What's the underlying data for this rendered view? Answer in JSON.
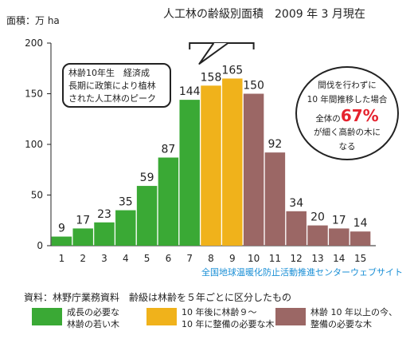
{
  "chart_data": {
    "type": "bar",
    "title": "人工林の齢級別面積　2009 年 3 月現在",
    "ylabel": "面積：万 ha",
    "xlabel": "",
    "ylim": [
      0,
      200
    ],
    "yticks": [
      0,
      50,
      100,
      150,
      200
    ],
    "grid": false,
    "categories": [
      "1",
      "2",
      "3",
      "4",
      "5",
      "6",
      "7",
      "8",
      "9",
      "10",
      "11",
      "12",
      "13",
      "14",
      "15"
    ],
    "values": [
      9,
      17,
      23,
      35,
      59,
      87,
      144,
      158,
      165,
      150,
      92,
      34,
      20,
      17,
      14
    ],
    "bar_groups": [
      "g",
      "g",
      "g",
      "g",
      "g",
      "g",
      "g",
      "y",
      "y",
      "b",
      "b",
      "b",
      "b",
      "b",
      "b"
    ],
    "colors": {
      "g": "#3aa935",
      "y": "#f0b21b",
      "b": "#9b6765"
    },
    "value_labels": true
  },
  "callouts": {
    "left_lines": [
      "林齢10年生　経済成",
      "長期に政策により植林",
      "された人工林のピーク"
    ],
    "right_line1": "間伐を行わずに",
    "right_line2": "10 年間推移した場合",
    "right_line3_pre": "全体の",
    "right_percent": "67%",
    "right_line4": "が細く高齢の木に",
    "right_line5": "なる"
  },
  "website": "全国地球温暖化防止活動推進センターウェブサイト",
  "source": "資料：林野庁業務資料　齢級は林齢を５年ごとに区分したもの",
  "legend": [
    {
      "color": "#3aa935",
      "line1": "成長の必要な",
      "line2": "林齢の若い木"
    },
    {
      "color": "#f0b21b",
      "line1": "10 年後に林齢９〜",
      "line2": "10 年に整備の必要な木"
    },
    {
      "color": "#9b6765",
      "line1": "林齢 10 年以上の今、",
      "line2": "整備の必要な木"
    }
  ]
}
